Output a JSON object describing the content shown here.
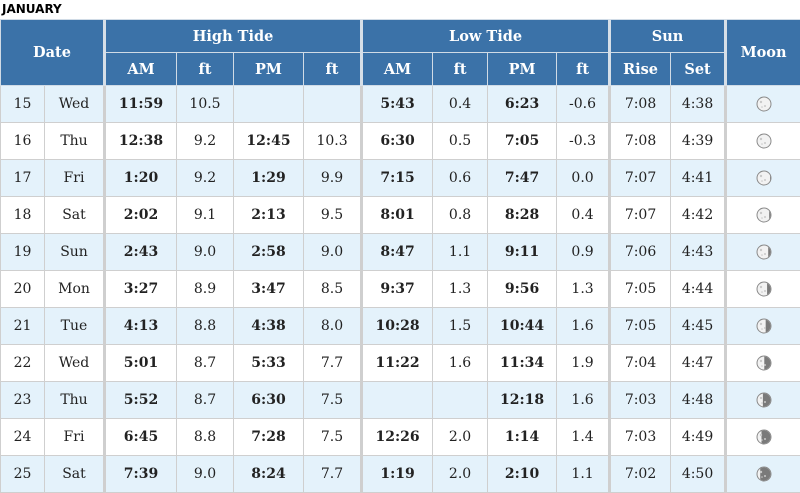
{
  "month": "JANUARY",
  "headers": {
    "date": "Date",
    "high_tide": "High Tide",
    "low_tide": "Low Tide",
    "sun": "Sun",
    "moon": "Moon",
    "am": "AM",
    "ft": "ft",
    "pm": "PM",
    "rise": "Rise",
    "set": "Set"
  },
  "rows": [
    {
      "day": "15",
      "dow": "Wed",
      "h_am": "11:59",
      "h_am_ft": "10.5",
      "h_pm": "",
      "h_pm_ft": "",
      "l_am": "5:43",
      "l_am_ft": "0.4",
      "l_pm": "6:23",
      "l_pm_ft": "-0.6",
      "rise": "7:08",
      "set": "4:38",
      "moon": 0.98
    },
    {
      "day": "16",
      "dow": "Thu",
      "h_am": "12:38",
      "h_am_ft": "9.2",
      "h_pm": "12:45",
      "h_pm_ft": "10.3",
      "l_am": "6:30",
      "l_am_ft": "0.5",
      "l_pm": "7:05",
      "l_pm_ft": "-0.3",
      "rise": "7:08",
      "set": "4:39",
      "moon": 0.97
    },
    {
      "day": "17",
      "dow": "Fri",
      "h_am": "1:20",
      "h_am_ft": "9.2",
      "h_pm": "1:29",
      "h_pm_ft": "9.9",
      "l_am": "7:15",
      "l_am_ft": "0.6",
      "l_pm": "7:47",
      "l_pm_ft": "0.0",
      "rise": "7:07",
      "set": "4:41",
      "moon": 0.93
    },
    {
      "day": "18",
      "dow": "Sat",
      "h_am": "2:02",
      "h_am_ft": "9.1",
      "h_pm": "2:13",
      "h_pm_ft": "9.5",
      "l_am": "8:01",
      "l_am_ft": "0.8",
      "l_pm": "8:28",
      "l_pm_ft": "0.4",
      "rise": "7:07",
      "set": "4:42",
      "moon": 0.87
    },
    {
      "day": "19",
      "dow": "Sun",
      "h_am": "2:43",
      "h_am_ft": "9.0",
      "h_pm": "2:58",
      "h_pm_ft": "9.0",
      "l_am": "8:47",
      "l_am_ft": "1.1",
      "l_pm": "9:11",
      "l_pm_ft": "0.9",
      "rise": "7:06",
      "set": "4:43",
      "moon": 0.8
    },
    {
      "day": "20",
      "dow": "Mon",
      "h_am": "3:27",
      "h_am_ft": "8.9",
      "h_pm": "3:47",
      "h_pm_ft": "8.5",
      "l_am": "9:37",
      "l_am_ft": "1.3",
      "l_pm": "9:56",
      "l_pm_ft": "1.3",
      "rise": "7:05",
      "set": "4:44",
      "moon": 0.72
    },
    {
      "day": "21",
      "dow": "Tue",
      "h_am": "4:13",
      "h_am_ft": "8.8",
      "h_pm": "4:38",
      "h_pm_ft": "8.0",
      "l_am": "10:28",
      "l_am_ft": "1.5",
      "l_pm": "10:44",
      "l_pm_ft": "1.6",
      "rise": "7:05",
      "set": "4:45",
      "moon": 0.62
    },
    {
      "day": "22",
      "dow": "Wed",
      "h_am": "5:01",
      "h_am_ft": "8.7",
      "h_pm": "5:33",
      "h_pm_ft": "7.7",
      "l_am": "11:22",
      "l_am_ft": "1.6",
      "l_pm": "11:34",
      "l_pm_ft": "1.9",
      "rise": "7:04",
      "set": "4:47",
      "moon": 0.52
    },
    {
      "day": "23",
      "dow": "Thu",
      "h_am": "5:52",
      "h_am_ft": "8.7",
      "h_pm": "6:30",
      "h_pm_ft": "7.5",
      "l_am": "",
      "l_am_ft": "",
      "l_pm": "12:18",
      "l_pm_ft": "1.6",
      "rise": "7:03",
      "set": "4:48",
      "moon": 0.42
    },
    {
      "day": "24",
      "dow": "Fri",
      "h_am": "6:45",
      "h_am_ft": "8.8",
      "h_pm": "7:28",
      "h_pm_ft": "7.5",
      "l_am": "12:26",
      "l_am_ft": "2.0",
      "l_pm": "1:14",
      "l_pm_ft": "1.4",
      "rise": "7:03",
      "set": "4:49",
      "moon": 0.32
    },
    {
      "day": "25",
      "dow": "Sat",
      "h_am": "7:39",
      "h_am_ft": "9.0",
      "h_pm": "8:24",
      "h_pm_ft": "7.7",
      "l_am": "1:19",
      "l_am_ft": "2.0",
      "l_pm": "2:10",
      "l_pm_ft": "1.1",
      "rise": "7:02",
      "set": "4:50",
      "moon": 0.23
    }
  ],
  "colors": {
    "header_bg": "#3b72a8",
    "row_alt_bg": "#e4f2fb",
    "row_bg": "#ffffff",
    "moon_light": "#f2f2f2",
    "moon_dark": "#7a7a7a"
  }
}
